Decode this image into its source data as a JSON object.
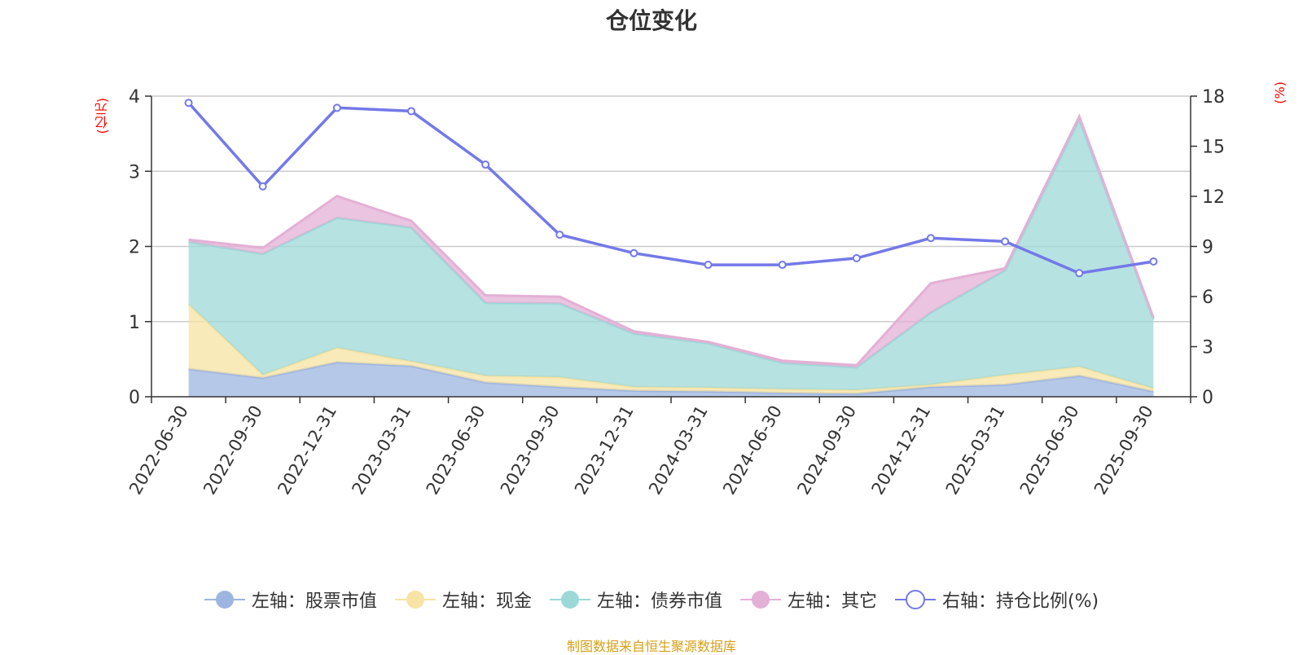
{
  "chart_data": {
    "type": "area",
    "title": "仓位变化",
    "left_axis_unit": "(亿元)",
    "right_axis_unit": "(%)",
    "ylim_left": [
      0,
      4
    ],
    "yticks_left": [
      "0",
      "1",
      "2",
      "3",
      "4"
    ],
    "ylim_right": [
      0,
      18
    ],
    "yticks_right": [
      "0",
      "3",
      "6",
      "9",
      "12",
      "15",
      "18"
    ],
    "categories": [
      "2022-06-30",
      "2022-09-30",
      "2022-12-31",
      "2023-03-31",
      "2023-06-30",
      "2023-09-30",
      "2023-12-31",
      "2024-03-31",
      "2024-06-30",
      "2024-09-30",
      "2024-12-31",
      "2025-03-31",
      "2025-06-30",
      "2025-09-30"
    ],
    "series": [
      {
        "name": "左轴：股票市值",
        "axis": "left",
        "color": "#9db5e0",
        "stack": true,
        "values": [
          0.37,
          0.25,
          0.46,
          0.41,
          0.19,
          0.13,
          0.08,
          0.07,
          0.05,
          0.04,
          0.13,
          0.16,
          0.28,
          0.07
        ]
      },
      {
        "name": "左轴：现金",
        "axis": "left",
        "color": "#f7e3a3",
        "stack": true,
        "values": [
          0.86,
          0.04,
          0.19,
          0.06,
          0.09,
          0.13,
          0.05,
          0.05,
          0.05,
          0.05,
          0.03,
          0.13,
          0.12,
          0.04
        ]
      },
      {
        "name": "左轴：债券市值",
        "axis": "left",
        "color": "#9dd8d8",
        "stack": true,
        "values": [
          0.83,
          1.61,
          1.73,
          1.78,
          0.97,
          0.98,
          0.71,
          0.59,
          0.35,
          0.3,
          0.96,
          1.39,
          3.29,
          0.92
        ]
      },
      {
        "name": "左轴：其它",
        "axis": "left",
        "color": "#e3b0d6",
        "stack": true,
        "values": [
          0.03,
          0.08,
          0.29,
          0.09,
          0.1,
          0.09,
          0.03,
          0.02,
          0.03,
          0.03,
          0.39,
          0.03,
          0.04,
          0.02
        ]
      },
      {
        "name": "右轴：持仓比例(%)",
        "axis": "right",
        "color": "#7379e8",
        "type": "line",
        "values": [
          17.6,
          12.6,
          17.3,
          17.1,
          13.9,
          9.7,
          8.6,
          7.9,
          7.9,
          8.3,
          9.5,
          9.3,
          7.4,
          8.1
        ]
      }
    ]
  },
  "source_text": "制图数据来自恒生聚源数据库"
}
